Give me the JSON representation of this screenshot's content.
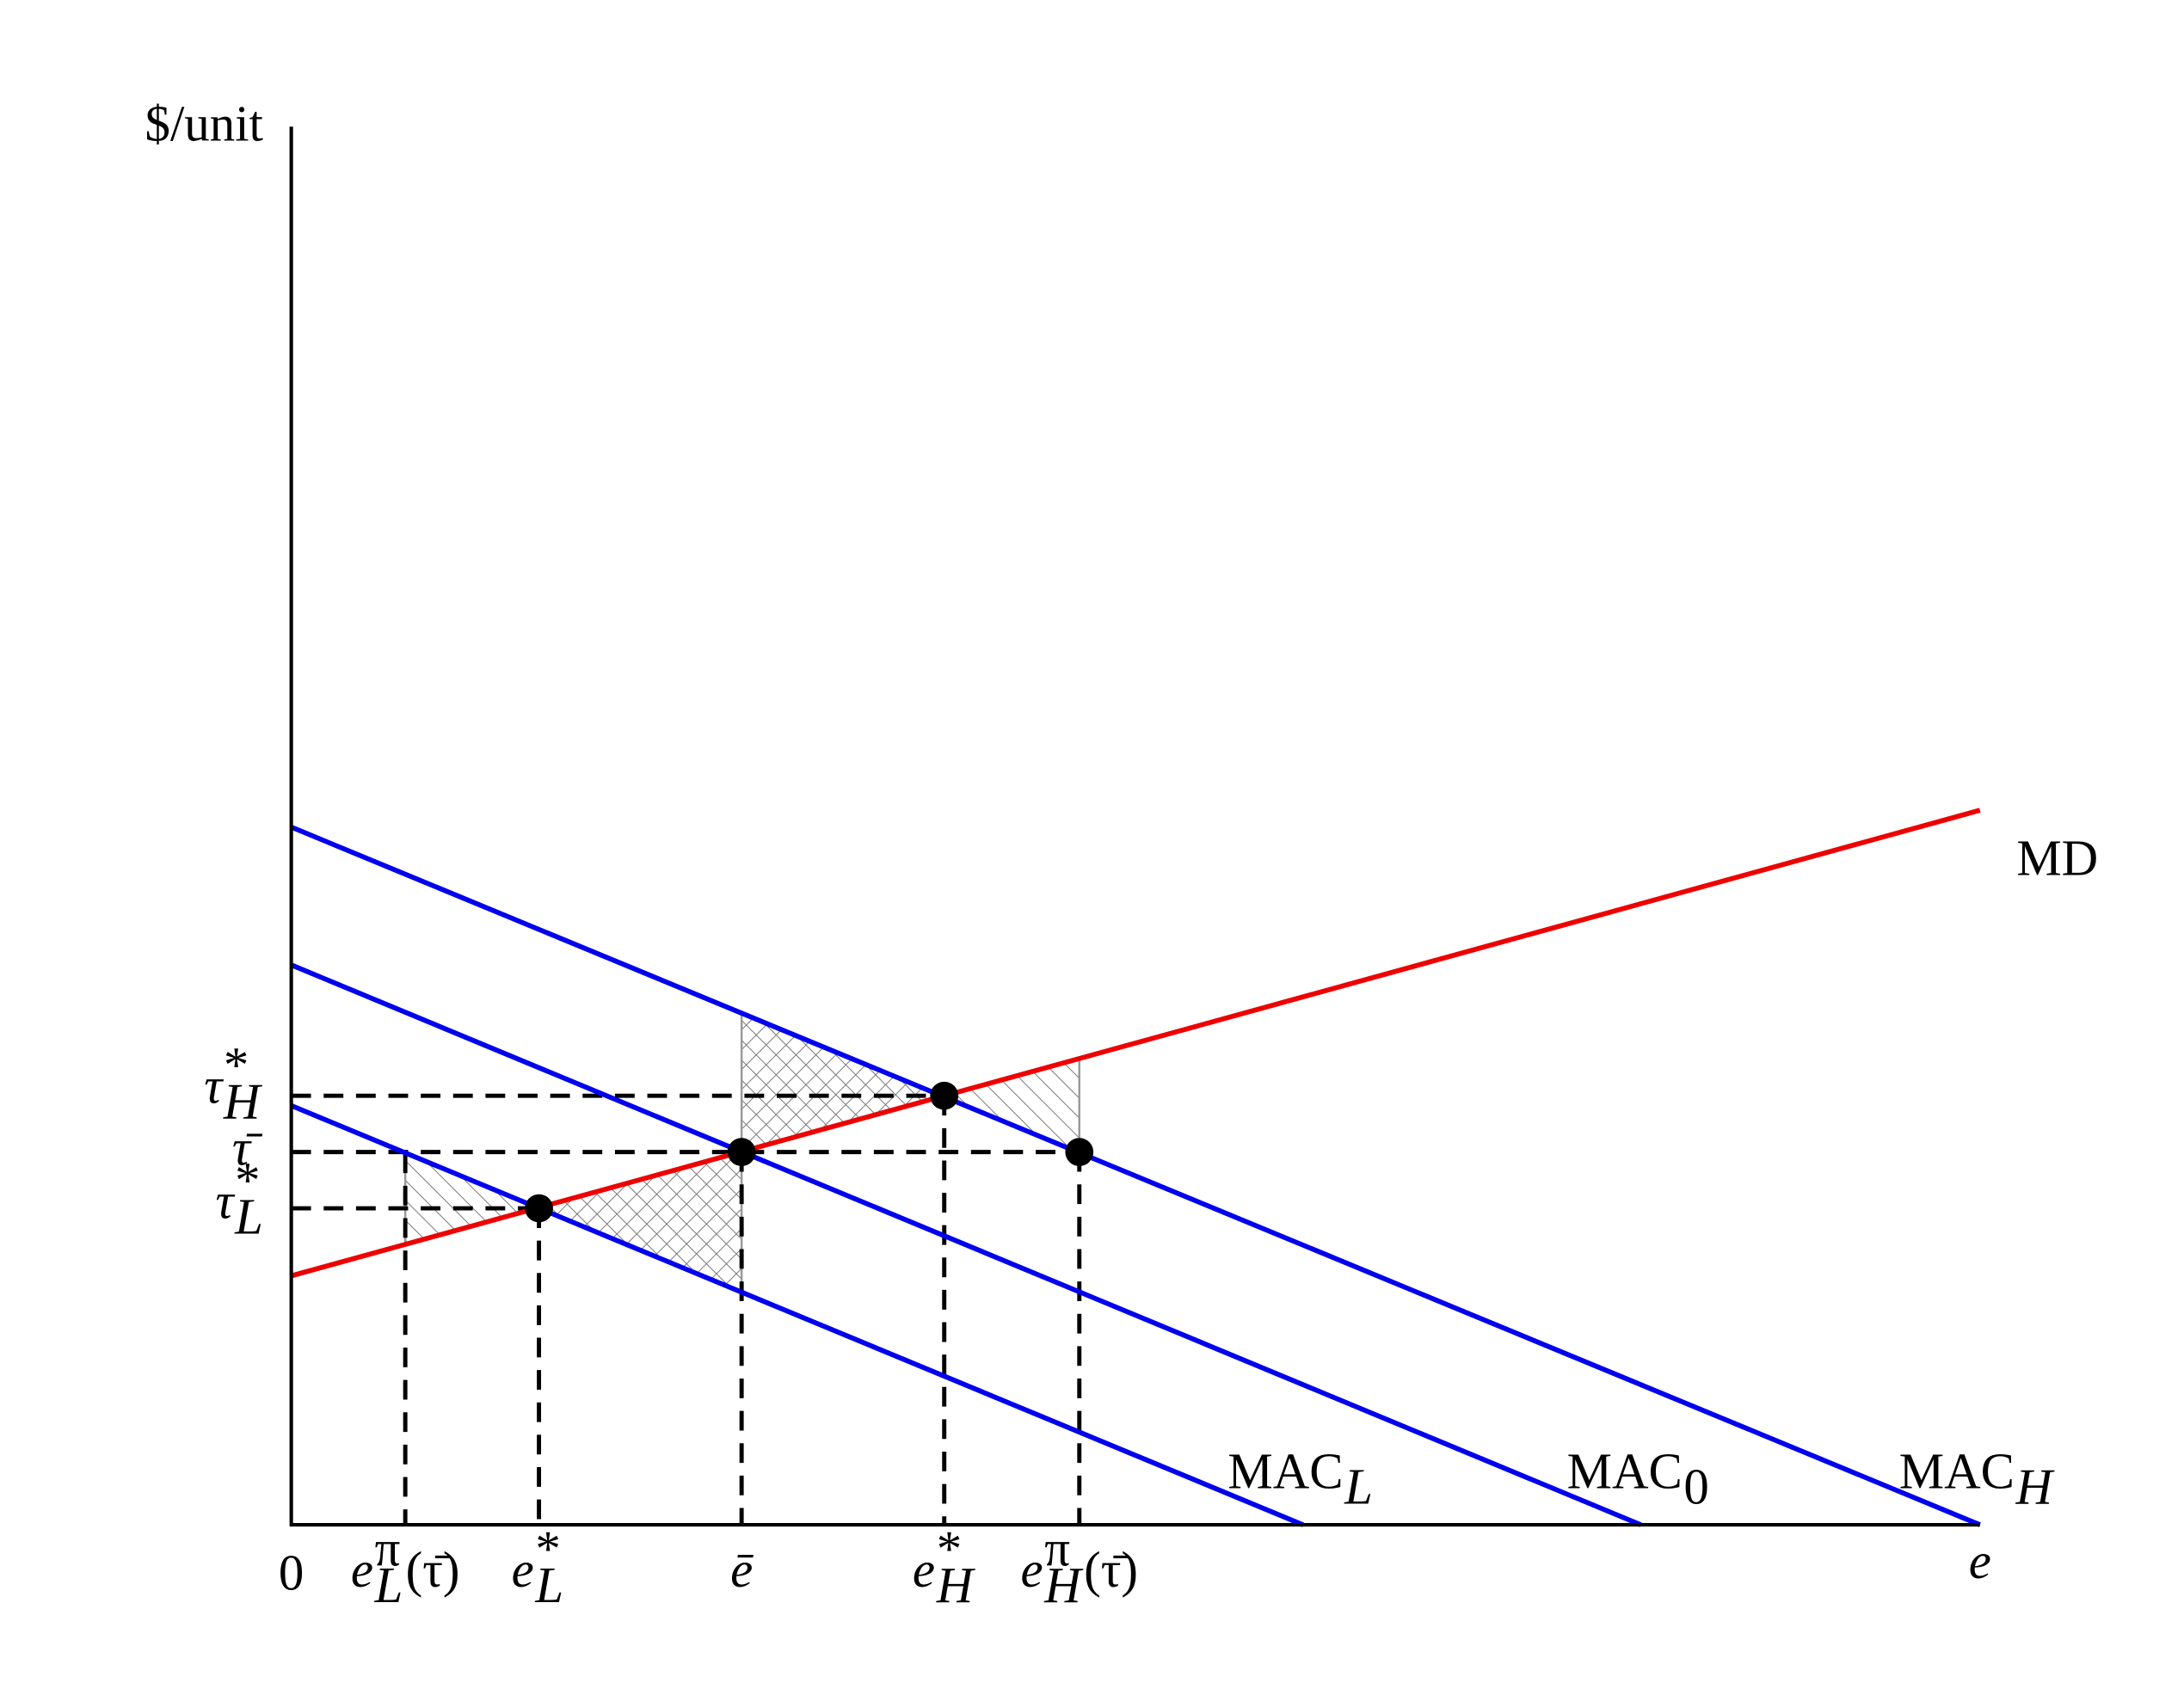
{
  "axis": {
    "y_label": "$/unit",
    "origin": "0",
    "x_label": "e"
  },
  "x_labels": [
    {
      "base": "e",
      "sup": "π",
      "sub": "L",
      "tail": "(τ̄)"
    },
    {
      "base": "e",
      "sup": "*",
      "sub": "L"
    },
    {
      "base": "ē"
    },
    {
      "base": "e",
      "sup": "*",
      "sub": "H"
    },
    {
      "base": "e",
      "sup": "π",
      "sub": "H",
      "tail": "(τ̄)"
    }
  ],
  "y_labels": [
    {
      "base": "τ",
      "sup": "*",
      "sub": "H"
    },
    {
      "base": "τ̄"
    },
    {
      "base": "τ",
      "sup": "*",
      "sub": "L"
    }
  ],
  "curves": [
    {
      "base": "MD"
    },
    {
      "base": "MAC",
      "sub": "L"
    },
    {
      "base": "MAC",
      "sub": "0"
    },
    {
      "base": "MAC",
      "sub": "H"
    }
  ]
}
